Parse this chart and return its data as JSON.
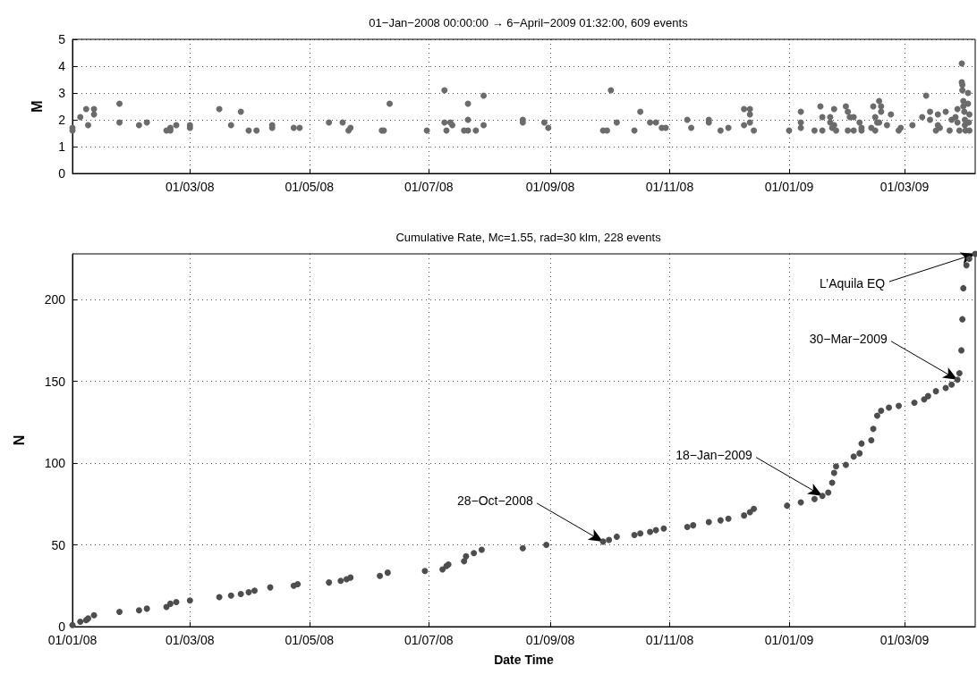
{
  "chart_data": [
    {
      "type": "scatter",
      "title": "01−Jan−2008 00:00:00 → 6−April−2009 01:32:00, 609 events",
      "ylabel": "M",
      "marker": "circle",
      "grid": true,
      "xlim": [
        "2008-01-01",
        "2009-04-06T01:32"
      ],
      "ylim": [
        0,
        5
      ],
      "yticks": [
        0,
        1,
        2,
        3,
        4,
        5
      ],
      "xticks": [
        {
          "value": "2008-01-01",
          "label": null
        },
        {
          "value": "2008-03-01",
          "label": "01/03/08"
        },
        {
          "value": "2008-05-01",
          "label": "01/05/08"
        },
        {
          "value": "2008-07-01",
          "label": "01/07/08"
        },
        {
          "value": "2008-09-01",
          "label": "01/09/08"
        },
        {
          "value": "2008-11-01",
          "label": "01/11/08"
        },
        {
          "value": "2009-01-01",
          "label": "01/01/09"
        },
        {
          "value": "2009-03-01",
          "label": "01/03/09"
        }
      ],
      "series": [
        {
          "color": "#6b6b6b",
          "x": [
            "2008-01-01",
            "2008-01-01",
            "2008-01-05",
            "2008-01-08",
            "2008-01-09",
            "2008-01-12",
            "2008-01-12",
            "2008-01-25",
            "2008-01-25",
            "2008-02-04",
            "2008-02-08",
            "2008-02-18",
            "2008-02-20",
            "2008-02-20",
            "2008-02-23",
            "2008-03-01",
            "2008-03-01",
            "2008-03-16",
            "2008-03-22",
            "2008-03-27",
            "2008-03-31",
            "2008-04-04",
            "2008-04-12",
            "2008-04-12",
            "2008-04-23",
            "2008-04-26",
            "2008-05-11",
            "2008-05-18",
            "2008-05-21",
            "2008-05-22",
            "2008-06-07",
            "2008-06-08",
            "2008-06-11",
            "2008-06-30",
            "2008-07-09",
            "2008-07-09",
            "2008-07-10",
            "2008-07-12",
            "2008-07-13",
            "2008-07-19",
            "2008-07-21",
            "2008-07-21",
            "2008-07-21",
            "2008-07-25",
            "2008-07-29",
            "2008-07-29",
            "2008-08-18",
            "2008-08-18",
            "2008-08-29",
            "2008-08-31",
            "2008-09-28",
            "2008-09-30",
            "2008-10-02",
            "2008-10-05",
            "2008-10-14",
            "2008-10-17",
            "2008-10-22",
            "2008-10-25",
            "2008-10-28",
            "2008-10-30",
            "2008-11-10",
            "2008-11-12",
            "2008-11-21",
            "2008-11-21",
            "2008-11-27",
            "2008-12-01",
            "2008-12-09",
            "2008-12-12",
            "2008-12-12",
            "2008-12-12",
            "2008-12-09",
            "2008-12-14",
            "2009-01-01",
            "2009-01-07",
            "2009-01-07",
            "2009-01-07",
            "2009-01-14",
            "2009-01-17",
            "2009-01-18",
            "2009-01-18",
            "2009-01-22",
            "2009-01-22",
            "2009-01-24",
            "2009-01-23",
            "2009-01-25",
            "2009-01-24",
            "2009-01-30",
            "2009-01-31",
            "2009-02-01",
            "2009-02-03",
            "2009-01-31",
            "2009-02-03",
            "2009-02-06",
            "2009-02-07",
            "2009-02-07",
            "2009-02-12",
            "2009-02-13",
            "2009-02-14",
            "2009-02-14",
            "2009-02-15",
            "2009-02-16",
            "2009-02-17",
            "2009-02-17",
            "2009-02-16",
            "2009-02-20",
            "2009-02-22",
            "2009-02-26",
            "2009-02-27",
            "2009-03-05",
            "2009-03-10",
            "2009-03-12",
            "2009-03-14",
            "2009-03-14",
            "2009-03-17",
            "2009-03-18",
            "2009-03-19",
            "2009-03-18",
            "2009-03-22",
            "2009-03-24",
            "2009-03-25",
            "2009-03-27",
            "2009-03-28",
            "2009-03-28",
            "2009-03-29",
            "2009-03-30T05:00",
            "2009-03-30T05:00",
            "2009-03-30T12:00",
            "2009-03-30T12:00",
            "2009-03-31",
            "2009-03-31",
            "2009-03-31T12:00",
            "2009-03-31T19:00",
            "2009-03-31T19:00",
            "2009-04-01T02:00",
            "2009-04-02T10:00",
            "2009-04-02T10:00",
            "2009-04-02T19:00",
            "2009-04-03T02:00",
            "2009-04-03T02:00"
          ],
          "values": [
            1.7,
            1.6,
            2.1,
            2.4,
            1.8,
            2.4,
            2.2,
            2.6,
            1.9,
            1.8,
            1.9,
            1.6,
            1.7,
            1.6,
            1.8,
            1.8,
            1.7,
            2.4,
            1.8,
            2.3,
            1.6,
            1.6,
            1.8,
            1.7,
            1.7,
            1.7,
            1.9,
            1.9,
            1.6,
            1.7,
            1.6,
            1.6,
            2.6,
            1.6,
            3.1,
            1.9,
            1.6,
            1.9,
            1.8,
            1.6,
            1.6,
            2.6,
            2.0,
            1.6,
            2.9,
            1.8,
            2.0,
            1.9,
            1.9,
            1.7,
            1.6,
            1.6,
            3.1,
            1.9,
            1.6,
            2.3,
            1.9,
            1.9,
            1.7,
            1.7,
            2.0,
            1.7,
            2.0,
            1.9,
            1.6,
            1.7,
            2.4,
            2.4,
            2.2,
            1.9,
            1.8,
            1.6,
            1.6,
            2.3,
            1.9,
            1.7,
            1.6,
            2.5,
            2.1,
            1.6,
            1.9,
            2.1,
            2.4,
            1.7,
            1.6,
            1.8,
            2.5,
            2.3,
            2.1,
            2.1,
            1.6,
            1.6,
            1.9,
            1.7,
            1.6,
            1.7,
            2.5,
            2.1,
            1.6,
            1.9,
            2.7,
            2.5,
            2.3,
            1.9,
            1.8,
            2.2,
            1.6,
            1.7,
            1.8,
            2.1,
            2.9,
            2.3,
            2.0,
            1.6,
            1.8,
            1.7,
            2.2,
            2.3,
            1.6,
            2.0,
            2.1,
            2.4,
            1.9,
            1.6,
            4.1,
            3.4,
            3.3,
            3.1,
            2.7,
            2.5,
            2.3,
            2.0,
            1.8,
            1.6,
            3.0,
            2.6,
            1.9,
            1.6,
            2.2
          ]
        }
      ]
    },
    {
      "type": "scatter",
      "title": "Cumulative Rate, Mc=1.55, rad=30 klm, 228 events",
      "xlabel": "Date Time",
      "ylabel": "N",
      "marker": "circle",
      "grid": true,
      "xlim": [
        "2008-01-01",
        "2009-04-06T01:32"
      ],
      "ylim": [
        0,
        228
      ],
      "yticks": [
        0,
        50,
        100,
        150,
        200
      ],
      "xticks": [
        {
          "value": "2008-01-01",
          "label": "01/01/08"
        },
        {
          "value": "2008-03-01",
          "label": "01/03/08"
        },
        {
          "value": "2008-05-01",
          "label": "01/05/08"
        },
        {
          "value": "2008-07-01",
          "label": "01/07/08"
        },
        {
          "value": "2008-09-01",
          "label": "01/09/08"
        },
        {
          "value": "2008-11-01",
          "label": "01/11/08"
        },
        {
          "value": "2009-01-01",
          "label": "01/01/09"
        },
        {
          "value": "2009-03-01",
          "label": "01/03/09"
        }
      ],
      "annotations": [
        {
          "text": "28−Oct−2008",
          "x": "2008-09-28",
          "y": 52
        },
        {
          "text": "18−Jan−2009",
          "x": "2009-01-18",
          "y": 80
        },
        {
          "text": "30−Mar−2009",
          "x": "2009-03-28",
          "y": 151
        },
        {
          "text": "L’Aquila EQ",
          "x": "2009-04-06T01:32",
          "y": 228
        }
      ],
      "series": [
        {
          "color": "#4d4d4d",
          "x": [
            "2008-01-01",
            "2008-01-05",
            "2008-01-08",
            "2008-01-09",
            "2008-01-12",
            "2008-01-25",
            "2008-02-04",
            "2008-02-08",
            "2008-02-18",
            "2008-02-20",
            "2008-02-23",
            "2008-03-01",
            "2008-03-16",
            "2008-03-22",
            "2008-03-27",
            "2008-03-31",
            "2008-04-03",
            "2008-04-11",
            "2008-04-23",
            "2008-04-25",
            "2008-05-11",
            "2008-05-17",
            "2008-05-20",
            "2008-05-22",
            "2008-06-06",
            "2008-06-10",
            "2008-06-29",
            "2008-07-08",
            "2008-07-10",
            "2008-07-11",
            "2008-07-19",
            "2008-07-20",
            "2008-07-24",
            "2008-07-28",
            "2008-08-18",
            "2008-08-30",
            "2008-09-28",
            "2008-10-01",
            "2008-10-05",
            "2008-10-14",
            "2008-10-17",
            "2008-10-22",
            "2008-10-25",
            "2008-10-29",
            "2008-11-10",
            "2008-11-13",
            "2008-11-21",
            "2008-11-27",
            "2008-12-01",
            "2008-12-09",
            "2008-12-12",
            "2008-12-14",
            "2008-12-31",
            "2009-01-07",
            "2009-01-14",
            "2009-01-18",
            "2009-01-21",
            "2009-01-23",
            "2009-01-24",
            "2009-01-25",
            "2009-01-30",
            "2009-02-03",
            "2009-02-06",
            "2009-02-07",
            "2009-02-12",
            "2009-02-13",
            "2009-02-15",
            "2009-02-17",
            "2009-02-21",
            "2009-02-26",
            "2009-03-06",
            "2009-03-11",
            "2009-03-13",
            "2009-03-17",
            "2009-03-22",
            "2009-03-25",
            "2009-03-28",
            "2009-03-29",
            "2009-03-30",
            "2009-03-30T12:00",
            "2009-03-31",
            "2009-04-01T14:00",
            "2009-04-03",
            "2009-04-06T01:32"
          ],
          "values": [
            1,
            3,
            4,
            5,
            7,
            9,
            10,
            11,
            12,
            14,
            15,
            16,
            18,
            19,
            20,
            21,
            22,
            24,
            25,
            26,
            27,
            28,
            29,
            30,
            31,
            33,
            34,
            35,
            37,
            38,
            40,
            43,
            45,
            47,
            48,
            50,
            52,
            53,
            55,
            56,
            57,
            58,
            59,
            60,
            61,
            62,
            64,
            65,
            66,
            68,
            70,
            72,
            74,
            76,
            78,
            80,
            82,
            88,
            94,
            98,
            99,
            104,
            106,
            112,
            114,
            121,
            129,
            132,
            134,
            135,
            137,
            139,
            141,
            144,
            146,
            148,
            151,
            155,
            169,
            188,
            207,
            221,
            225,
            228
          ]
        }
      ]
    }
  ]
}
